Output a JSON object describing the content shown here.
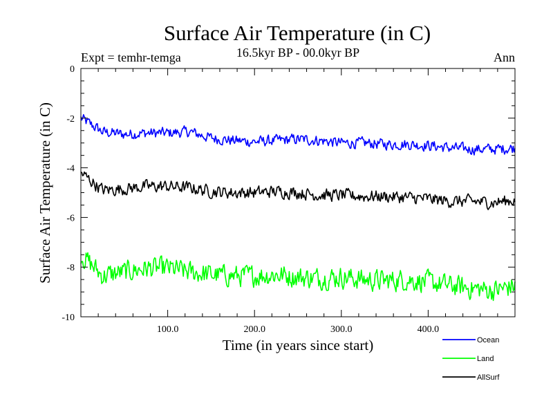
{
  "chart_data": {
    "type": "line",
    "title": "Surface Air Temperature (in C)",
    "subtitle": "16.5kyr BP - 00.0kyr BP",
    "left_note": "Expt = temhr-temga",
    "right_note": "Ann",
    "xlabel": "Time (in years since start)",
    "ylabel": "Surface Air Temperature (in C)",
    "xlim": [
      0,
      500
    ],
    "ylim": [
      -10,
      0
    ],
    "x_ticks": [
      100,
      200,
      300,
      400
    ],
    "x_tick_labels": [
      "100.0",
      "200.0",
      "300.0",
      "400.0"
    ],
    "y_ticks": [
      0,
      -2,
      -4,
      -6,
      -8,
      -10
    ],
    "y_tick_labels": [
      "0",
      "-2",
      "-4",
      "-6",
      "-8",
      "-10"
    ],
    "grid": false,
    "legend_position": "bottom-right",
    "series": [
      {
        "name": "Ocean",
        "color": "#0000ff",
        "x": [
          0,
          25,
          50,
          75,
          100,
          125,
          150,
          175,
          200,
          225,
          250,
          275,
          300,
          325,
          350,
          375,
          400,
          425,
          450,
          475,
          500
        ],
        "values": [
          -2.0,
          -2.55,
          -2.65,
          -2.6,
          -2.6,
          -2.55,
          -2.8,
          -2.9,
          -2.95,
          -2.9,
          -2.85,
          -2.9,
          -3.0,
          -3.0,
          -3.05,
          -3.05,
          -3.1,
          -3.2,
          -3.25,
          -3.25,
          -3.2
        ]
      },
      {
        "name": "Land",
        "color": "#00ff00",
        "x": [
          0,
          25,
          50,
          75,
          100,
          125,
          150,
          175,
          200,
          225,
          250,
          275,
          300,
          325,
          350,
          375,
          400,
          425,
          450,
          475,
          500
        ],
        "values": [
          -7.5,
          -8.35,
          -8.2,
          -8.05,
          -8.05,
          -8.2,
          -8.3,
          -8.35,
          -8.35,
          -8.3,
          -8.4,
          -8.45,
          -8.4,
          -8.5,
          -8.55,
          -8.5,
          -8.6,
          -8.75,
          -8.85,
          -8.95,
          -8.75
        ]
      },
      {
        "name": "AllSurf",
        "color": "#000000",
        "x": [
          0,
          25,
          50,
          75,
          100,
          125,
          150,
          175,
          200,
          225,
          250,
          275,
          300,
          325,
          350,
          375,
          400,
          425,
          450,
          475,
          500
        ],
        "values": [
          -4.2,
          -4.9,
          -4.85,
          -4.75,
          -4.75,
          -4.8,
          -4.95,
          -5.0,
          -5.0,
          -4.95,
          -5.0,
          -5.1,
          -5.1,
          -5.15,
          -5.15,
          -5.2,
          -5.25,
          -5.35,
          -5.35,
          -5.4,
          -5.3
        ]
      }
    ]
  }
}
